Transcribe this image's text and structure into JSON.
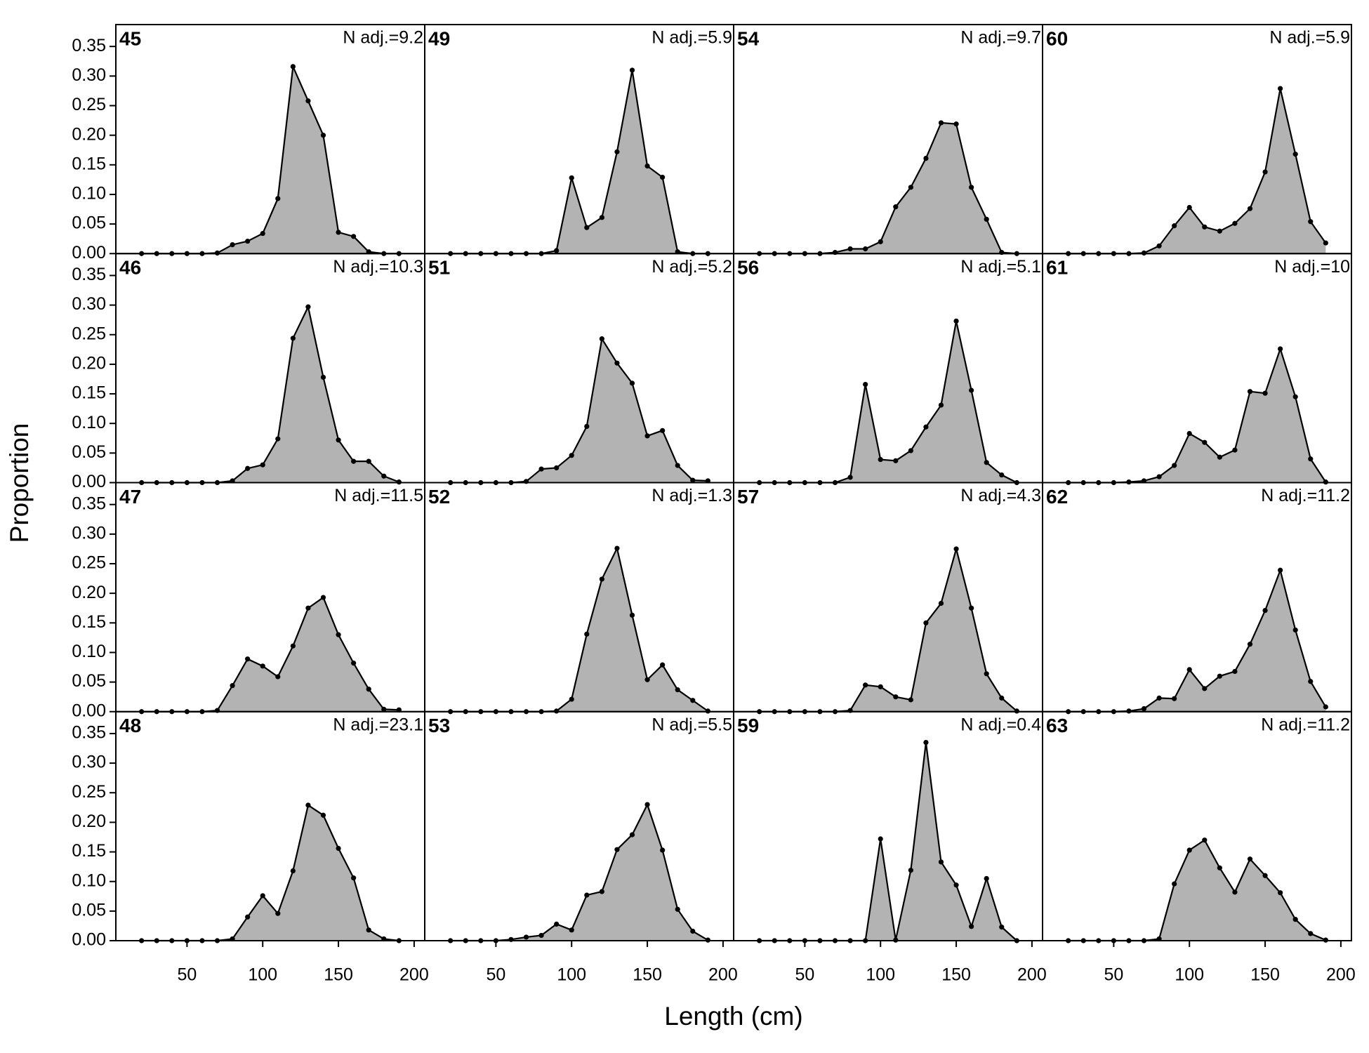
{
  "xlabel": "Length (cm)",
  "ylabel": "Proportion",
  "axes": {
    "x": [
      20,
      30,
      40,
      50,
      60,
      70,
      80,
      90,
      100,
      110,
      120,
      130,
      140,
      150,
      160,
      170,
      180,
      190
    ],
    "xlim": [
      3,
      207
    ],
    "ylim": [
      0,
      0.387
    ],
    "xticks": [
      50,
      100,
      150,
      200
    ],
    "yticks": [
      {
        "value": 0,
        "label": "0.00"
      },
      {
        "value": 0.05,
        "label": "0.05"
      },
      {
        "value": 0.1,
        "label": "0.10"
      },
      {
        "value": 0.15,
        "label": "0.15"
      },
      {
        "value": 0.2,
        "label": "0.20"
      },
      {
        "value": 0.25,
        "label": "0.25"
      },
      {
        "value": 0.3,
        "label": "0.30"
      },
      {
        "value": 0.35,
        "label": "0.35"
      }
    ],
    "fill": "#b3b3b3",
    "line_color": "#000000"
  },
  "chart_data": [
    {
      "type": "area",
      "title": "45",
      "annotation": "N adj.=9.2",
      "values": [
        0,
        0,
        0,
        0,
        0,
        0.001,
        0.015,
        0.021,
        0.034,
        0.093,
        0.316,
        0.258,
        0.2,
        0.036,
        0.029,
        0.003,
        0,
        0
      ]
    },
    {
      "type": "area",
      "title": "49",
      "annotation": "N adj.=5.9",
      "values": [
        0,
        0,
        0,
        0,
        0,
        0,
        0,
        0.005,
        0.128,
        0.044,
        0.061,
        0.172,
        0.31,
        0.148,
        0.129,
        0.003,
        0,
        0
      ]
    },
    {
      "type": "area",
      "title": "54",
      "annotation": "N adj.=9.7",
      "values": [
        0,
        0,
        0,
        0,
        0,
        0.002,
        0.008,
        0.008,
        0.02,
        0.079,
        0.112,
        0.161,
        0.221,
        0.219,
        0.112,
        0.058,
        0.002,
        0
      ]
    },
    {
      "type": "area",
      "title": "60",
      "annotation": "N adj.=5.9",
      "values": [
        0,
        0,
        0,
        0,
        0,
        0.001,
        0.013,
        0.047,
        0.078,
        0.045,
        0.038,
        0.051,
        0.076,
        0.138,
        0.279,
        0.168,
        0.054,
        0.018
      ]
    },
    {
      "type": "area",
      "title": "46",
      "annotation": "N adj.=10.3",
      "values": [
        0,
        0,
        0,
        0,
        0,
        0,
        0.003,
        0.024,
        0.03,
        0.074,
        0.244,
        0.297,
        0.178,
        0.072,
        0.036,
        0.036,
        0.011,
        0.001
      ]
    },
    {
      "type": "area",
      "title": "51",
      "annotation": "N adj.=5.2",
      "values": [
        0,
        0,
        0,
        0,
        0,
        0.002,
        0.023,
        0.025,
        0.046,
        0.095,
        0.243,
        0.202,
        0.168,
        0.079,
        0.088,
        0.029,
        0.004,
        0.003
      ]
    },
    {
      "type": "area",
      "title": "56",
      "annotation": "N adj.=5.1",
      "values": [
        0,
        0,
        0,
        0,
        0,
        0,
        0.009,
        0.166,
        0.039,
        0.037,
        0.054,
        0.094,
        0.131,
        0.273,
        0.156,
        0.034,
        0.013,
        0
      ]
    },
    {
      "type": "area",
      "title": "61",
      "annotation": "N adj.=10",
      "values": [
        0,
        0,
        0,
        0,
        0.001,
        0.003,
        0.01,
        0.029,
        0.083,
        0.068,
        0.043,
        0.055,
        0.154,
        0.151,
        0.226,
        0.145,
        0.04,
        0.001
      ]
    },
    {
      "type": "area",
      "title": "47",
      "annotation": "N adj.=11.5",
      "values": [
        0,
        0,
        0,
        0,
        0,
        0.002,
        0.044,
        0.089,
        0.077,
        0.059,
        0.111,
        0.175,
        0.193,
        0.13,
        0.082,
        0.038,
        0.004,
        0.003
      ]
    },
    {
      "type": "area",
      "title": "52",
      "annotation": "N adj.=1.3",
      "values": [
        0,
        0,
        0,
        0,
        0,
        0,
        0,
        0.001,
        0.021,
        0.131,
        0.224,
        0.276,
        0.163,
        0.054,
        0.079,
        0.037,
        0.019,
        0.001
      ]
    },
    {
      "type": "area",
      "title": "57",
      "annotation": "N adj.=4.3",
      "values": [
        0,
        0,
        0,
        0,
        0,
        0,
        0.002,
        0.045,
        0.042,
        0.025,
        0.02,
        0.15,
        0.183,
        0.275,
        0.175,
        0.064,
        0.023,
        0.001
      ]
    },
    {
      "type": "area",
      "title": "62",
      "annotation": "N adj.=11.2",
      "values": [
        0,
        0,
        0,
        0,
        0.001,
        0.005,
        0.023,
        0.022,
        0.071,
        0.039,
        0.06,
        0.068,
        0.114,
        0.171,
        0.239,
        0.138,
        0.051,
        0.008
      ]
    },
    {
      "type": "area",
      "title": "48",
      "annotation": "N adj.=23.1",
      "values": [
        0,
        0,
        0,
        0,
        0,
        0,
        0.003,
        0.04,
        0.076,
        0.046,
        0.118,
        0.229,
        0.212,
        0.156,
        0.106,
        0.018,
        0.003,
        0
      ]
    },
    {
      "type": "area",
      "title": "53",
      "annotation": "N adj.=5.5",
      "values": [
        0,
        0,
        0,
        0,
        0.002,
        0.006,
        0.009,
        0.028,
        0.018,
        0.077,
        0.083,
        0.154,
        0.179,
        0.23,
        0.153,
        0.053,
        0.016,
        0.001
      ]
    },
    {
      "type": "area",
      "title": "59",
      "annotation": "N adj.=0.4",
      "values": [
        0,
        0,
        0,
        0,
        0,
        0,
        0,
        0,
        0.172,
        0.001,
        0.119,
        0.335,
        0.133,
        0.094,
        0.024,
        0.105,
        0.023,
        0
      ]
    },
    {
      "type": "area",
      "title": "63",
      "annotation": "N adj.=11.2",
      "values": [
        0,
        0,
        0,
        0,
        0,
        0,
        0.003,
        0.096,
        0.153,
        0.17,
        0.123,
        0.082,
        0.138,
        0.11,
        0.081,
        0.036,
        0.012,
        0.001
      ]
    }
  ]
}
